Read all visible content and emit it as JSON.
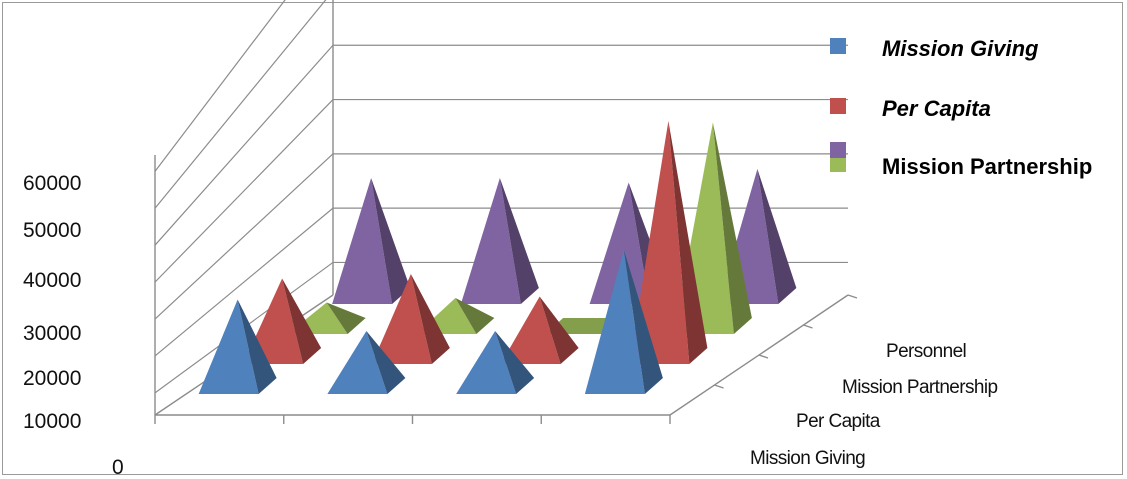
{
  "chart_data": {
    "type": "bar",
    "style": "3d-pyramid",
    "title": "",
    "xlabel": "",
    "ylabel": "",
    "categories": [
      "",
      "",
      "",
      ""
    ],
    "y_ticks": [
      "0",
      "10000",
      "20000",
      "30000",
      "40000",
      "50000",
      "60000"
    ],
    "ylim": [
      0,
      60000
    ],
    "depth_labels": [
      "Mission Giving",
      "Per Capita",
      "Mission Partnership",
      "Personnel"
    ],
    "series": [
      {
        "name": "Mission Giving",
        "italic": true,
        "color": "#4f81bd",
        "values": [
          21000,
          14000,
          14000,
          32000
        ]
      },
      {
        "name": "Per Capita",
        "italic": true,
        "color": "#c0504d",
        "values": [
          19000,
          20000,
          15000,
          54000
        ]
      },
      {
        "name": "Mission Partnership",
        "italic": false,
        "color": "#9bbb59",
        "values": [
          7000,
          8000,
          500,
          47000
        ]
      },
      {
        "name": "Personnel",
        "italic": false,
        "color": "#8064a2",
        "values": [
          28000,
          28000,
          27000,
          30000
        ]
      }
    ],
    "legend": [
      "Mission Giving",
      "Per Capita",
      "Mission Partnership"
    ],
    "legend_position": "top-right",
    "grid": true
  }
}
